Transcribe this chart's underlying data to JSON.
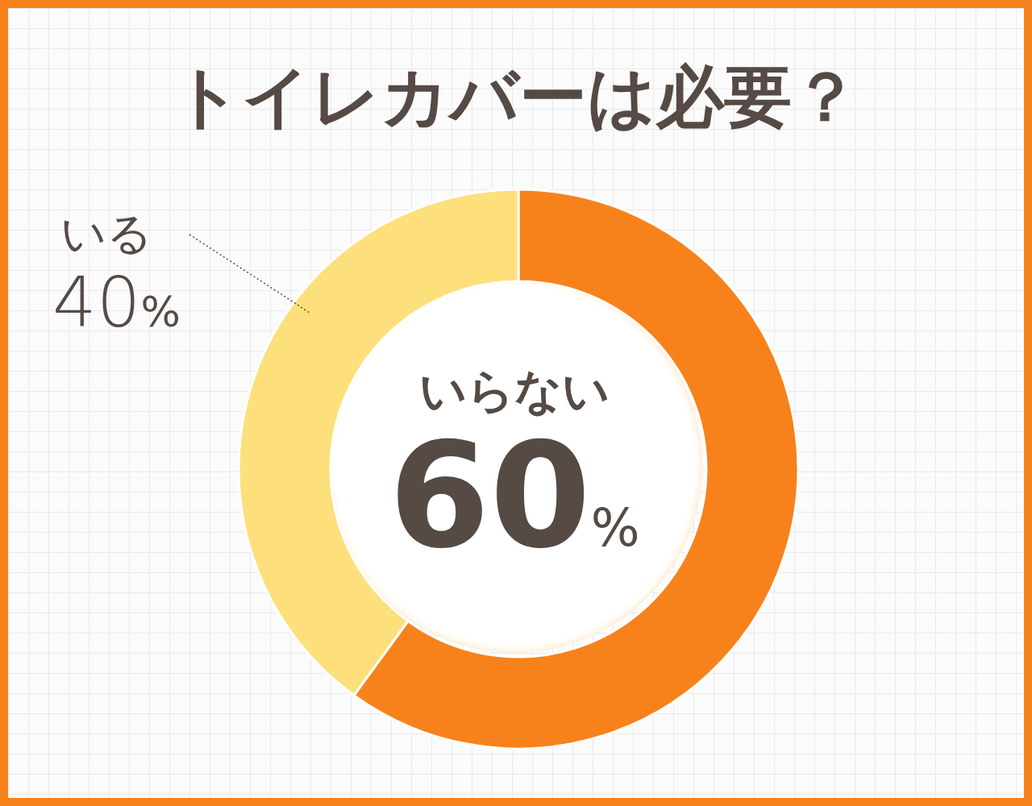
{
  "chart_data": {
    "type": "donut",
    "title": "トイレカバーは必要？",
    "categories": [
      "いらない",
      "いる"
    ],
    "values": [
      60,
      40
    ],
    "value_labels": [
      "60%",
      "40%"
    ],
    "colors": [
      "#f7821b",
      "#fde07c"
    ]
  }
}
